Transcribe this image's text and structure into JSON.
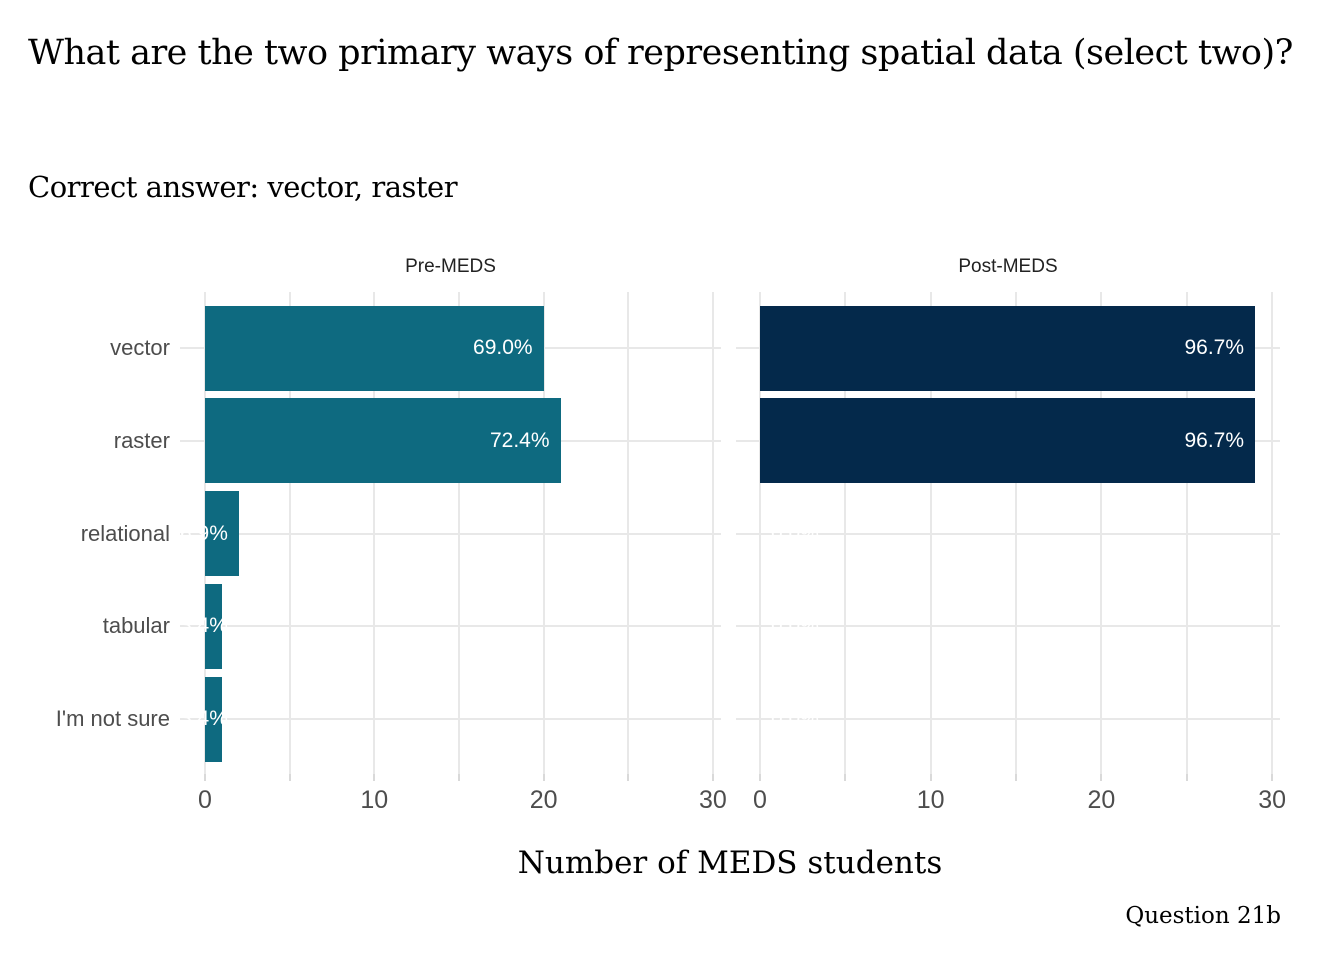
{
  "chart_data": {
    "type": "bar",
    "orientation": "horizontal",
    "title": "What are the two primary ways of representing spatial data (select two)?",
    "subtitle": "Correct answer: vector, raster",
    "xlabel": "Number of MEDS students",
    "caption": "Question 21b",
    "categories": [
      "vector",
      "raster",
      "relational",
      "tabular",
      "I'm not sure"
    ],
    "series": [
      {
        "name": "Pre-MEDS",
        "color": "#0e6a80",
        "values": [
          20,
          21,
          2,
          1,
          1
        ],
        "percent_labels": [
          "69.0%",
          "72.4%",
          "6.9%",
          "3.4%",
          "3.4%"
        ]
      },
      {
        "name": "Post-MEDS",
        "color": "#04294b",
        "values": [
          29,
          29,
          0,
          0,
          0
        ],
        "percent_labels": [
          "96.7%",
          "96.7%",
          "0.0%",
          "0.0%",
          "0.0%"
        ]
      }
    ],
    "x_ticks": [
      0,
      10,
      20,
      30
    ],
    "x_minor_step": 5,
    "xlim": [
      0,
      30.5
    ],
    "grid": true,
    "legend": "none",
    "colors": {
      "grid": "#e8e8e8",
      "axis_tick": "#d9d9d9",
      "axis_text": "#4d4d4d",
      "strip_text": "#222222",
      "bar_label": "#ffffff"
    }
  }
}
